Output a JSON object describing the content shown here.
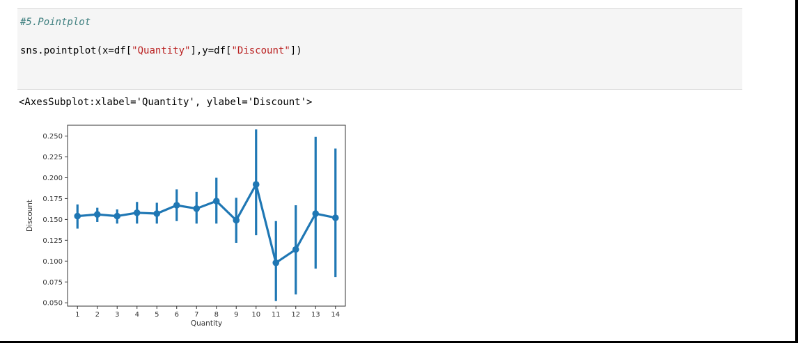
{
  "cell": {
    "comment": "#5.Pointplot",
    "code": {
      "prefix": "sns.pointplot(x=df[",
      "arg1": "\"Quantity\"",
      "mid": "],y=df[",
      "arg2": "\"Discount\"",
      "suffix": "])"
    }
  },
  "output": {
    "text": "<AxesSubplot:xlabel='Quantity', ylabel='Discount'>"
  },
  "chart_data": {
    "type": "line",
    "subtype": "pointplot",
    "xlabel": "Quantity",
    "ylabel": "Discount",
    "categories": [
      "1",
      "2",
      "3",
      "4",
      "5",
      "6",
      "7",
      "8",
      "9",
      "10",
      "11",
      "12",
      "13",
      "14"
    ],
    "values": [
      0.154,
      0.156,
      0.154,
      0.158,
      0.157,
      0.167,
      0.163,
      0.172,
      0.149,
      0.192,
      0.098,
      0.114,
      0.157,
      0.152
    ],
    "ci_low": [
      0.139,
      0.147,
      0.145,
      0.145,
      0.145,
      0.148,
      0.145,
      0.145,
      0.122,
      0.131,
      0.052,
      0.06,
      0.091,
      0.081
    ],
    "ci_high": [
      0.168,
      0.164,
      0.162,
      0.171,
      0.17,
      0.186,
      0.183,
      0.2,
      0.176,
      0.258,
      0.148,
      0.167,
      0.249,
      0.235
    ],
    "yticks": [
      "0.050",
      "0.075",
      "0.100",
      "0.125",
      "0.150",
      "0.175",
      "0.200",
      "0.225",
      "0.250"
    ],
    "ylim": [
      0.046,
      0.263
    ],
    "color": "#1f77b4"
  }
}
